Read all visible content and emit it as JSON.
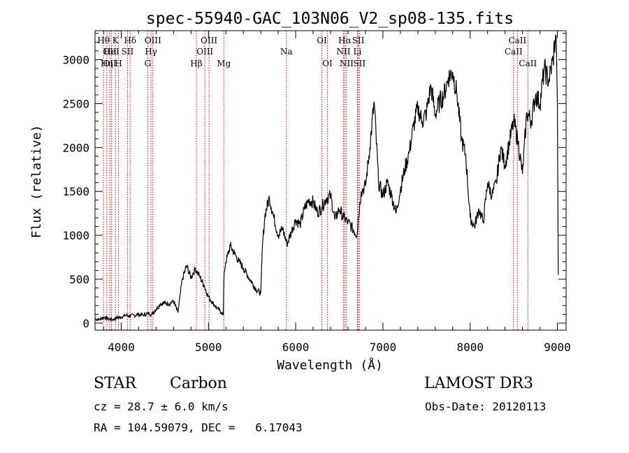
{
  "chart_data": {
    "type": "line",
    "title": "spec-55940-GAC_103N06_V2_sp08-135.fits",
    "xlabel": "Wavelength (Å)",
    "ylabel": "Flux (relative)",
    "xlim": [
      3700,
      9100
    ],
    "ylim": [
      -80,
      3330
    ],
    "x_ticks": [
      4000,
      5000,
      6000,
      7000,
      8000,
      9000
    ],
    "x_tick_labels": [
      "4000",
      "5000",
      "6000",
      "7000",
      "8000",
      "9000"
    ],
    "y_ticks": [
      0,
      500,
      1000,
      1500,
      2000,
      2500,
      3000
    ],
    "y_tick_labels": [
      "0",
      "500",
      "1000",
      "1500",
      "2000",
      "2500",
      "3000"
    ],
    "series": [
      {
        "name": "spectrum",
        "x": [
          3700,
          3750,
          3800,
          3850,
          3900,
          3950,
          4000,
          4050,
          4100,
          4150,
          4200,
          4250,
          4300,
          4350,
          4400,
          4450,
          4500,
          4550,
          4600,
          4650,
          4700,
          4750,
          4800,
          4820,
          4850,
          4900,
          4950,
          5000,
          5050,
          5100,
          5150,
          5170,
          5180,
          5200,
          5250,
          5300,
          5350,
          5400,
          5450,
          5500,
          5550,
          5600,
          5620,
          5650,
          5700,
          5750,
          5800,
          5850,
          5900,
          5950,
          6000,
          6050,
          6100,
          6150,
          6200,
          6250,
          6300,
          6350,
          6400,
          6450,
          6500,
          6550,
          6600,
          6650,
          6700,
          6750,
          6800,
          6850,
          6900,
          6950,
          7000,
          7050,
          7100,
          7150,
          7200,
          7250,
          7300,
          7350,
          7400,
          7450,
          7500,
          7550,
          7600,
          7650,
          7700,
          7750,
          7800,
          7850,
          7900,
          7950,
          8000,
          8050,
          8100,
          8150,
          8200,
          8250,
          8300,
          8350,
          8400,
          8450,
          8500,
          8550,
          8600,
          8650,
          8700,
          8750,
          8800,
          8850,
          8900,
          8950,
          8980,
          8990,
          9000,
          9010
        ],
        "values": [
          50,
          40,
          70,
          50,
          40,
          60,
          70,
          90,
          80,
          90,
          100,
          90,
          110,
          100,
          160,
          220,
          230,
          220,
          250,
          120,
          500,
          650,
          520,
          560,
          620,
          530,
          430,
          300,
          230,
          170,
          120,
          90,
          580,
          700,
          880,
          790,
          700,
          630,
          540,
          460,
          380,
          340,
          900,
          1250,
          1430,
          1200,
          1000,
          1080,
          900,
          1040,
          1180,
          1120,
          1300,
          1400,
          1380,
          1260,
          1320,
          1420,
          1450,
          1180,
          1300,
          1200,
          1150,
          1080,
          1000,
          1500,
          1560,
          2000,
          2520,
          1600,
          1450,
          1600,
          1450,
          1250,
          1520,
          1750,
          1940,
          2240,
          2450,
          2300,
          2400,
          2700,
          2380,
          2520,
          2600,
          2800,
          2860,
          2600,
          2100,
          1900,
          1200,
          1100,
          1300,
          1150,
          1600,
          1450,
          1600,
          2000,
          1800,
          2060,
          2300,
          2060,
          1700,
          2400,
          2300,
          2600,
          2500,
          2900,
          2760,
          3000,
          3280,
          3100,
          2550,
          550
        ]
      }
    ],
    "spectral_lines": [
      {
        "wl": 3797,
        "label": "Hθ",
        "row": 1
      },
      {
        "wl": 3835,
        "label": "Hη",
        "row": 3
      },
      {
        "wl": 3869,
        "label": "OII",
        "row": 2
      },
      {
        "wl": 3869,
        "label": "OII",
        "row": 3
      },
      {
        "wl": 3889,
        "label": "HeI",
        "row": 2
      },
      {
        "wl": 3934,
        "label": "K",
        "row": 1
      },
      {
        "wl": 3969,
        "label": "H",
        "row": 3
      },
      {
        "wl": 4072,
        "label": "SII",
        "row": 2
      },
      {
        "wl": 4102,
        "label": "Hδ",
        "row": 1
      },
      {
        "wl": 4304,
        "label": "G",
        "row": 3
      },
      {
        "wl": 4341,
        "label": "Hγ",
        "row": 2
      },
      {
        "wl": 4363,
        "label": "OIII",
        "row": 1
      },
      {
        "wl": 4861,
        "label": "Hβ",
        "row": 3
      },
      {
        "wl": 4959,
        "label": "OIII",
        "row": 2
      },
      {
        "wl": 5007,
        "label": "OIII",
        "row": 1
      },
      {
        "wl": 5176,
        "label": "Mg",
        "row": 3
      },
      {
        "wl": 5893,
        "label": "Na",
        "row": 2
      },
      {
        "wl": 6300,
        "label": "OI",
        "row": 1
      },
      {
        "wl": 6364,
        "label": "OI",
        "row": 3
      },
      {
        "wl": 6548,
        "label": "NII",
        "row": 2
      },
      {
        "wl": 6563,
        "label": "Hα",
        "row": 1
      },
      {
        "wl": 6583,
        "label": "NII",
        "row": 3
      },
      {
        "wl": 6708,
        "label": "Li",
        "row": 2
      },
      {
        "wl": 6717,
        "label": "SII",
        "row": 1
      },
      {
        "wl": 6731,
        "label": "SII",
        "row": 3
      },
      {
        "wl": 8498,
        "label": "CaII",
        "row": 2
      },
      {
        "wl": 8542,
        "label": "CaII",
        "row": 1
      },
      {
        "wl": 8662,
        "label": "CaII",
        "row": 3
      }
    ]
  },
  "info": {
    "object_class": "STAR",
    "subclass": "Carbon",
    "survey": "LAMOST DR3",
    "redshift": "cz = 28.7 ± 6.0 km/s",
    "obs_date": "Obs-Date: 20120113",
    "coords": "RA = 104.59079, DEC =   6.17043"
  },
  "colors": {
    "line": "#000000",
    "marker_line": "#cc0000",
    "background": "#ffffff"
  }
}
